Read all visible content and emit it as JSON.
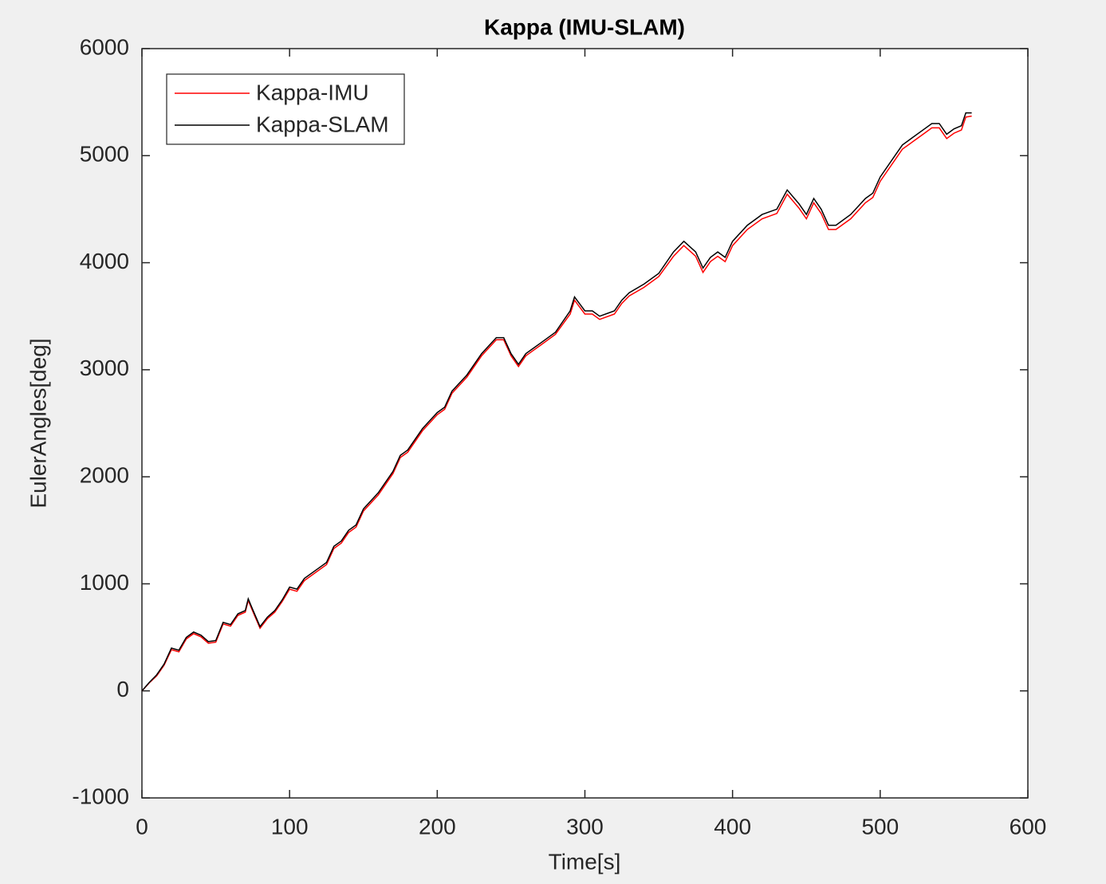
{
  "chart_data": {
    "type": "line",
    "title": "Kappa (IMU-SLAM)",
    "xlabel": "Time[s]",
    "ylabel": "EulerAngles[deg]",
    "x": [
      0,
      5,
      10,
      15,
      20,
      25,
      30,
      35,
      40,
      45,
      50,
      55,
      60,
      65,
      70,
      72,
      75,
      80,
      85,
      90,
      95,
      100,
      105,
      110,
      120,
      125,
      130,
      135,
      140,
      145,
      150,
      160,
      170,
      175,
      180,
      190,
      200,
      205,
      210,
      220,
      230,
      240,
      245,
      250,
      255,
      260,
      265,
      270,
      280,
      290,
      293,
      300,
      305,
      310,
      320,
      325,
      330,
      340,
      350,
      360,
      367,
      375,
      380,
      385,
      390,
      395,
      400,
      410,
      420,
      430,
      437,
      445,
      450,
      455,
      460,
      465,
      470,
      480,
      490,
      495,
      500,
      510,
      515,
      520,
      530,
      535,
      540,
      545,
      550,
      555,
      558,
      562
    ],
    "series": [
      {
        "name": "Kappa-IMU",
        "color": "#ff0000",
        "values": [
          0,
          75,
          140,
          240,
          385,
          365,
          485,
          535,
          505,
          445,
          455,
          625,
          605,
          705,
          735,
          845,
          745,
          585,
          675,
          735,
          835,
          950,
          930,
          1030,
          1130,
          1180,
          1330,
          1380,
          1480,
          1530,
          1680,
          1830,
          2030,
          2180,
          2230,
          2430,
          2580,
          2630,
          2780,
          2930,
          3130,
          3280,
          3280,
          3130,
          3030,
          3130,
          3180,
          3230,
          3330,
          3520,
          3650,
          3520,
          3520,
          3470,
          3520,
          3620,
          3690,
          3770,
          3870,
          4060,
          4160,
          4060,
          3910,
          4010,
          4060,
          4010,
          4160,
          4310,
          4410,
          4460,
          4640,
          4510,
          4410,
          4560,
          4460,
          4310,
          4310,
          4410,
          4560,
          4610,
          4760,
          4960,
          5060,
          5110,
          5210,
          5260,
          5260,
          5160,
          5210,
          5240,
          5360,
          5370
        ]
      },
      {
        "name": "Kappa-SLAM",
        "color": "#000000",
        "values": [
          0,
          80,
          150,
          250,
          400,
          380,
          500,
          550,
          520,
          460,
          470,
          640,
          620,
          720,
          750,
          860,
          760,
          600,
          690,
          750,
          850,
          970,
          950,
          1050,
          1150,
          1200,
          1350,
          1400,
          1500,
          1550,
          1700,
          1850,
          2050,
          2200,
          2250,
          2450,
          2600,
          2650,
          2800,
          2950,
          3150,
          3300,
          3300,
          3150,
          3050,
          3150,
          3200,
          3250,
          3350,
          3550,
          3680,
          3550,
          3550,
          3500,
          3550,
          3650,
          3720,
          3800,
          3900,
          4100,
          4200,
          4100,
          3950,
          4050,
          4100,
          4050,
          4200,
          4350,
          4450,
          4500,
          4680,
          4550,
          4450,
          4600,
          4500,
          4350,
          4350,
          4450,
          4600,
          4650,
          4800,
          5000,
          5100,
          5150,
          5250,
          5300,
          5300,
          5200,
          5250,
          5280,
          5400,
          5400
        ]
      }
    ],
    "xlim": [
      0,
      600
    ],
    "xticks": [
      0,
      100,
      200,
      300,
      400,
      500,
      600
    ],
    "ylim": [
      -1000,
      6000
    ],
    "yticks": [
      -1000,
      0,
      1000,
      2000,
      3000,
      4000,
      5000,
      6000
    ],
    "legend": "upper left"
  }
}
